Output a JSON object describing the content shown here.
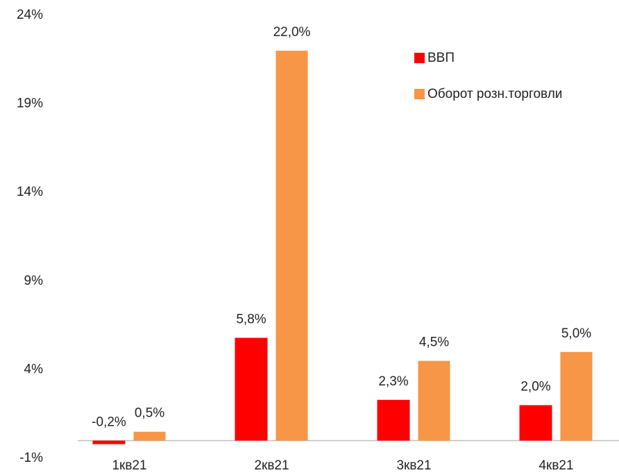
{
  "chart_data": {
    "type": "bar",
    "categories": [
      "1кв21",
      "2кв21",
      "3кв21",
      "4кв21"
    ],
    "series": [
      {
        "name": "ВВП",
        "color": "#ff0000",
        "values": [
          -0.2,
          5.8,
          2.3,
          2.0
        ],
        "value_labels": [
          "-0,2%",
          "5,8%",
          "2,3%",
          "2,0%"
        ]
      },
      {
        "name": "Оборот розн.торговли",
        "color": "#f79646",
        "values": [
          0.5,
          22.0,
          4.5,
          5.0
        ],
        "value_labels": [
          "0,5%",
          "22,0%",
          "4,5%",
          "5,0%"
        ]
      }
    ],
    "ylim": [
      -1,
      24
    ],
    "yticks": [
      {
        "value": -1,
        "label": "-1%"
      },
      {
        "value": 4,
        "label": "4%"
      },
      {
        "value": 9,
        "label": "9%"
      },
      {
        "value": 14,
        "label": "14%"
      },
      {
        "value": 19,
        "label": "19%"
      },
      {
        "value": 24,
        "label": "24%"
      }
    ],
    "grid": false,
    "legend": "top-right"
  }
}
